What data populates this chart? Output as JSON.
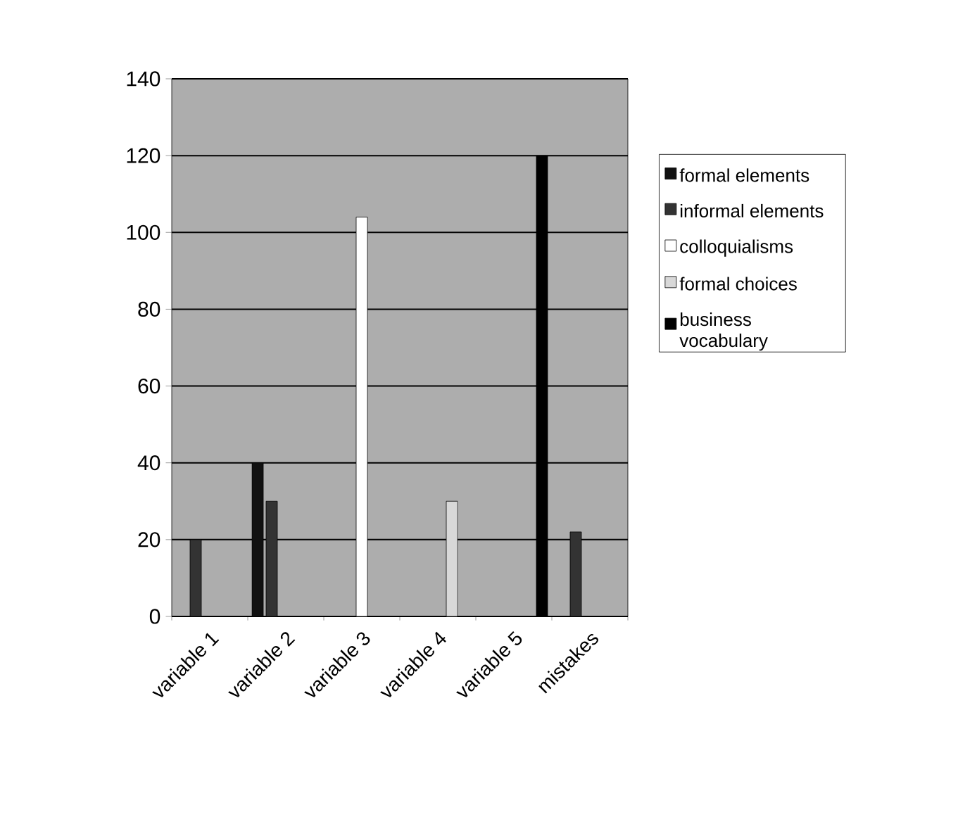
{
  "chart_data": {
    "type": "bar",
    "categories": [
      "variable 1",
      "variable 2",
      "variable 3",
      "variable 4",
      "variable 5",
      "mistakes"
    ],
    "series": [
      {
        "name": "formal elements",
        "color": "#111111",
        "values": [
          null,
          40,
          null,
          null,
          null,
          null
        ]
      },
      {
        "name": "informal elements",
        "color": "#333333",
        "values": [
          20,
          30,
          null,
          null,
          null,
          22
        ]
      },
      {
        "name": "colloquialisms",
        "color": "#ffffff",
        "values": [
          null,
          null,
          104,
          null,
          null,
          null
        ]
      },
      {
        "name": "formal choices",
        "color": "#d8d8d8",
        "values": [
          null,
          null,
          null,
          30,
          null,
          null
        ]
      },
      {
        "name": "business vocabulary",
        "color": "#000000",
        "values": [
          null,
          null,
          null,
          null,
          120,
          null
        ]
      }
    ],
    "ylim": [
      0,
      140
    ],
    "yticks": [
      0,
      20,
      40,
      60,
      80,
      100,
      120,
      140
    ],
    "grid": "y",
    "legend": "right"
  }
}
